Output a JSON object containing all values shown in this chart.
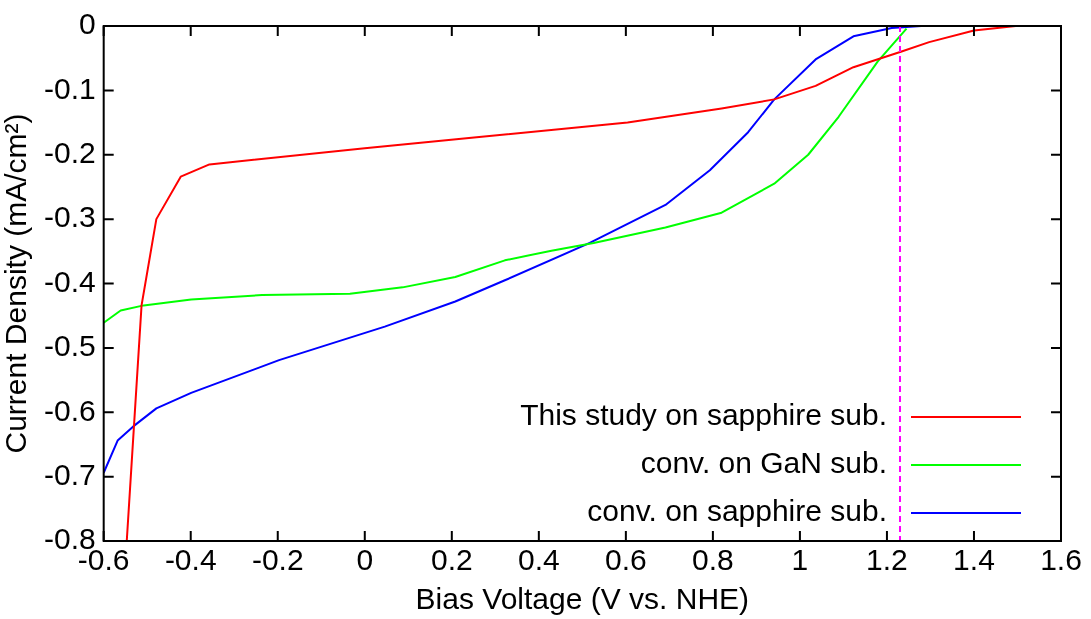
{
  "chart_data": {
    "type": "line",
    "xlabel": "Bias Voltage (V vs. NHE)",
    "ylabel": "Current Density (mA/cm²)",
    "xlim": [
      -0.6,
      1.6
    ],
    "xticks": [
      -0.6,
      -0.4,
      -0.2,
      0,
      0.2,
      0.4,
      0.6,
      0.8,
      1,
      1.2,
      1.4,
      1.6
    ],
    "ylim": [
      -0.8,
      0
    ],
    "yticks": [
      -0.8,
      -0.7,
      -0.6,
      -0.5,
      -0.4,
      -0.3,
      -0.2,
      -0.1,
      0
    ],
    "grid": false,
    "legend": "bottom right",
    "marker": "none",
    "line_style": "solid",
    "series": [
      {
        "name": "This study on sapphire sub.",
        "color": "#ff0000",
        "x": [
          -0.547,
          -0.513,
          -0.479,
          -0.423,
          -0.357,
          0,
          0.257,
          0.604,
          0.82,
          0.941,
          1.036,
          1.123,
          1.232,
          1.297,
          1.4,
          1.496
        ],
        "values": [
          -0.8,
          -0.434,
          -0.3,
          -0.234,
          -0.215,
          -0.19,
          -0.173,
          -0.15,
          -0.128,
          -0.114,
          -0.093,
          -0.064,
          -0.04,
          -0.025,
          -0.007,
          0
        ]
      },
      {
        "name": "conv. on GaN sub.",
        "color": "#00ff00",
        "x": [
          -0.6,
          -0.561,
          -0.508,
          -0.399,
          -0.236,
          -0.034,
          0.087,
          0.208,
          0.322,
          0.429,
          0.526,
          0.691,
          0.82,
          0.941,
          1.019,
          1.089,
          1.179,
          1.245
        ],
        "values": [
          -0.461,
          -0.442,
          -0.434,
          -0.425,
          -0.418,
          -0.416,
          -0.406,
          -0.39,
          -0.364,
          -0.349,
          -0.337,
          -0.313,
          -0.29,
          -0.245,
          -0.2,
          -0.141,
          -0.055,
          -0.004
        ]
      },
      {
        "name": "conv. on sapphire sub.",
        "color": "#0000ff",
        "x": [
          -0.6,
          -0.568,
          -0.532,
          -0.479,
          -0.399,
          -0.197,
          0.046,
          0.208,
          0.322,
          0.517,
          0.691,
          0.793,
          0.881,
          0.941,
          1.036,
          1.123,
          1.211,
          1.279
        ],
        "values": [
          -0.694,
          -0.644,
          -0.622,
          -0.594,
          -0.57,
          -0.519,
          -0.467,
          -0.428,
          -0.395,
          -0.337,
          -0.278,
          -0.224,
          -0.165,
          -0.114,
          -0.052,
          -0.016,
          -0.003,
          0
        ]
      }
    ],
    "ref_lines": [
      {
        "axis": "x",
        "value": 1.23,
        "color": "#ff00ff",
        "line_style": "dashed"
      }
    ]
  }
}
